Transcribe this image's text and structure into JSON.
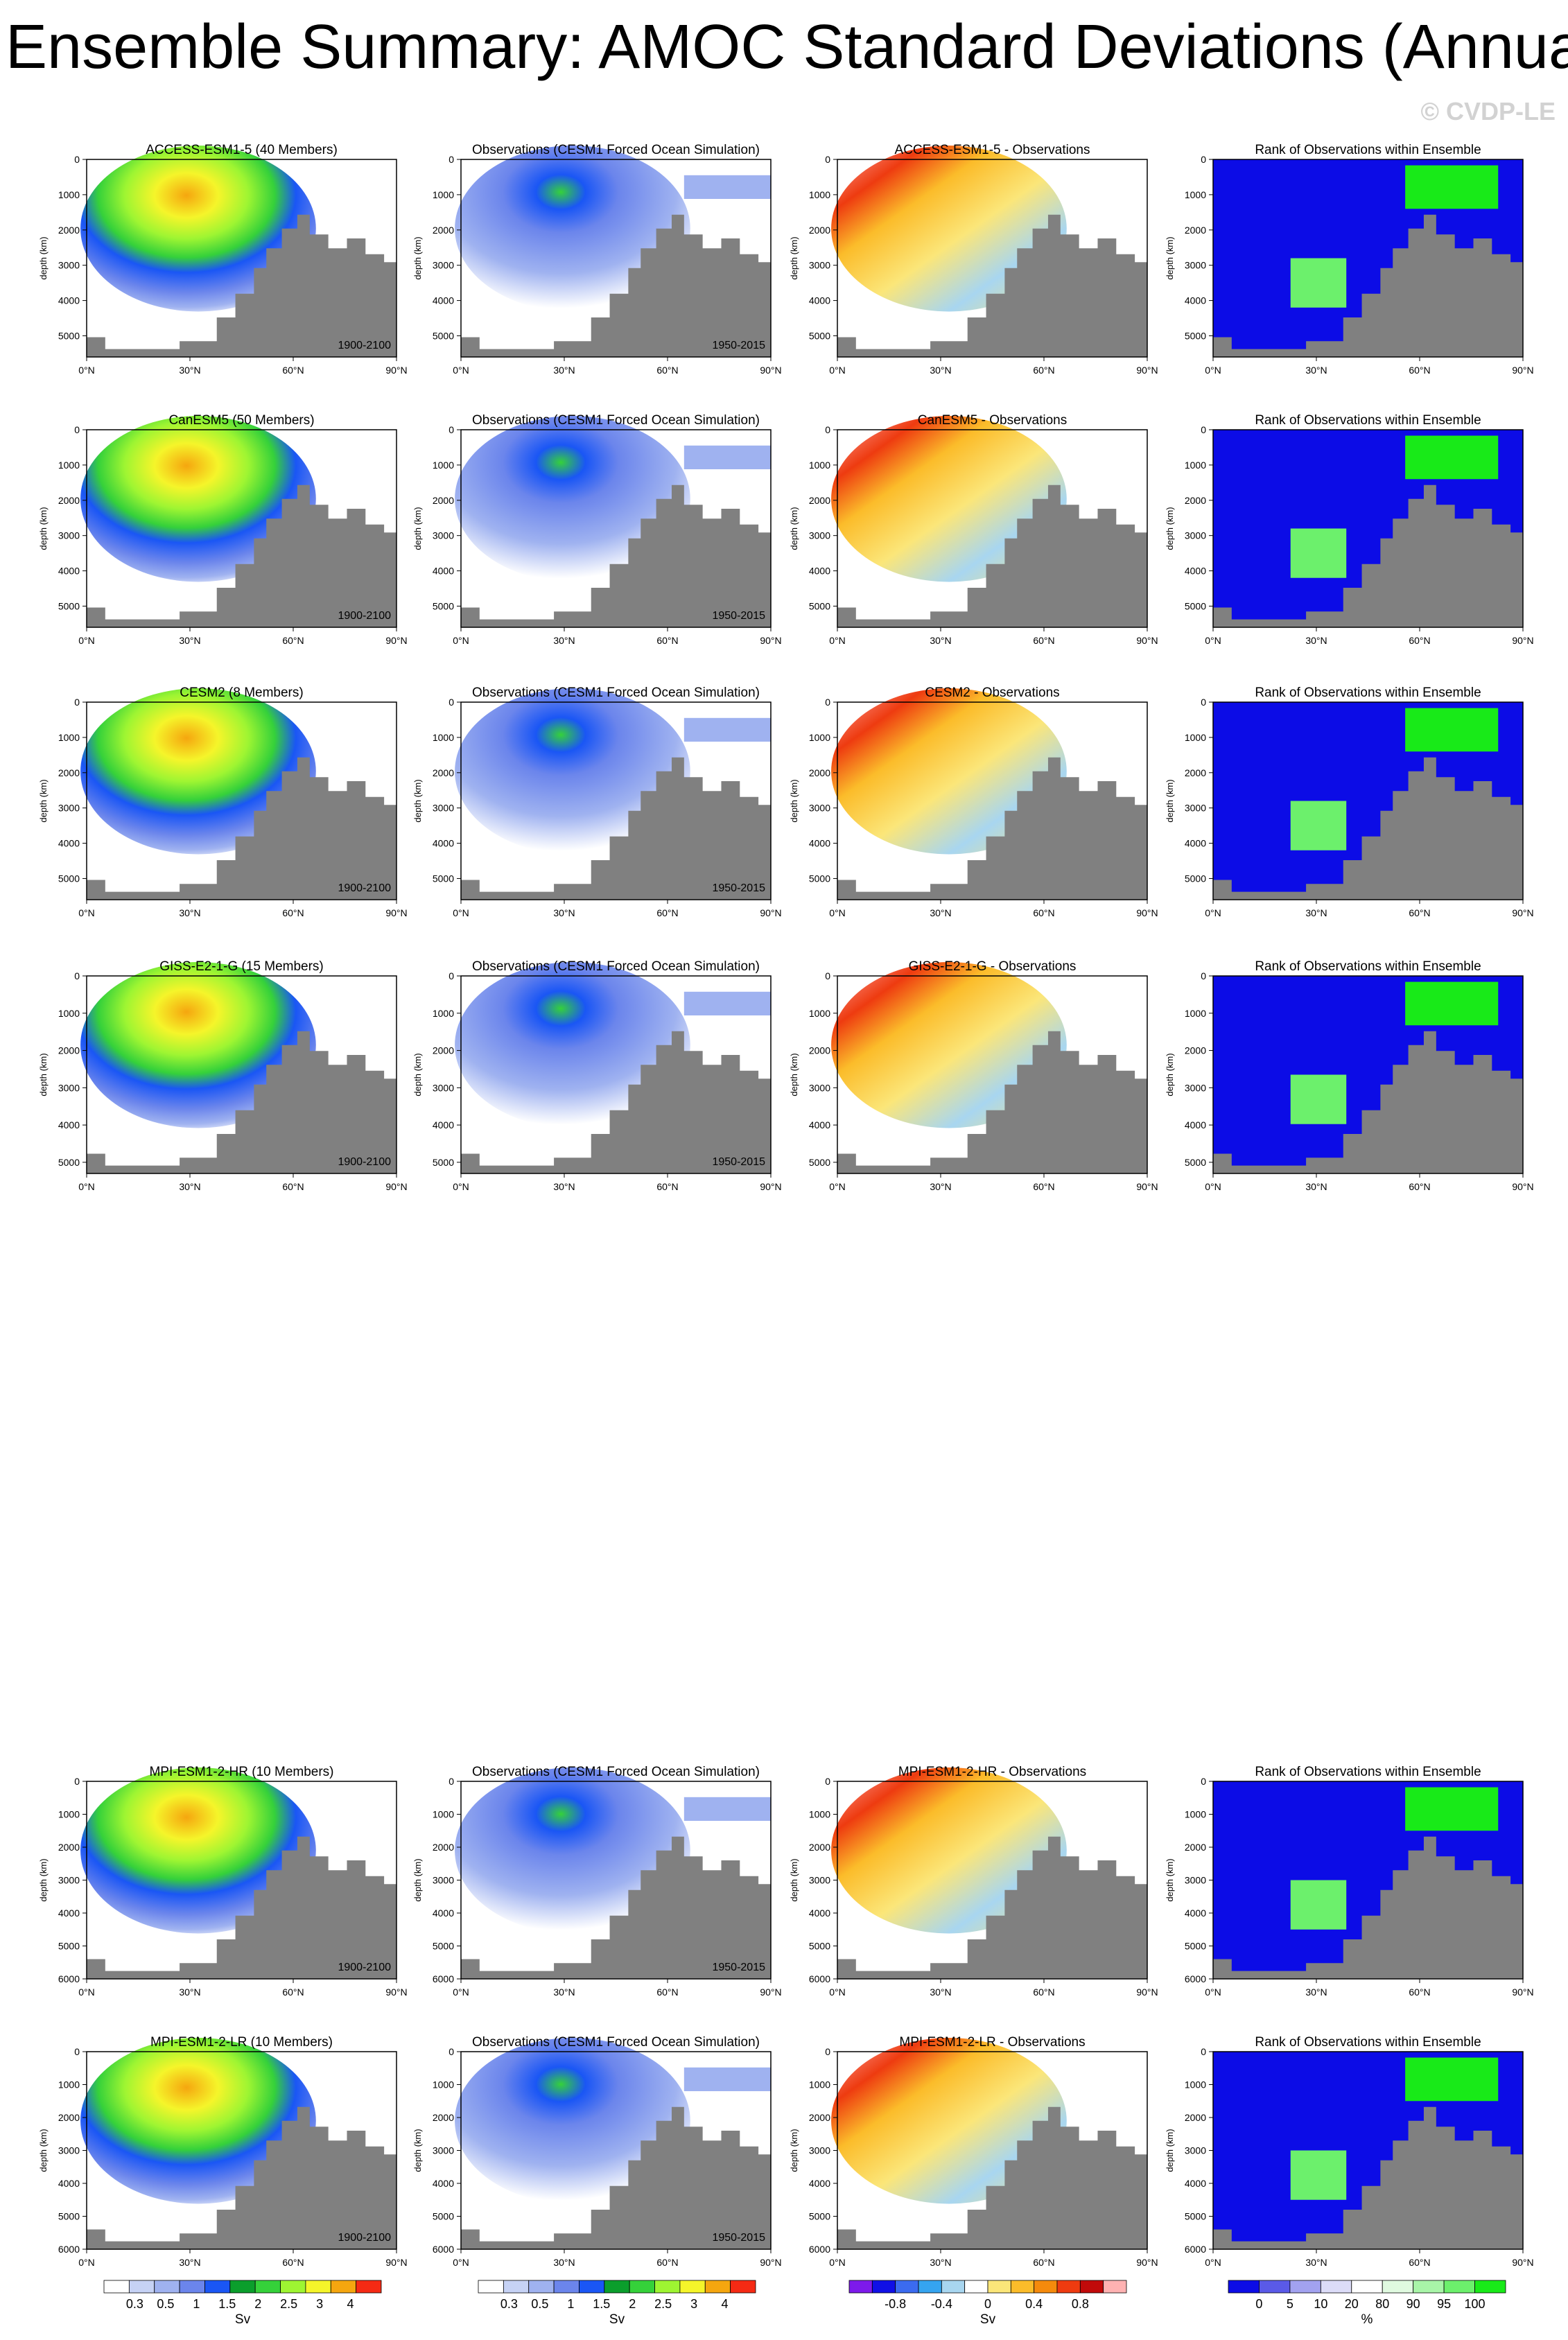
{
  "page": {
    "title": "Ensemble Summary: AMOC Standard Deviations (Annual)",
    "copyright": "© CVDP-LE"
  },
  "colors": {
    "land": "#808080",
    "sd_scale": [
      "#ffffff",
      "#c6d2f5",
      "#9fb2f0",
      "#6b85ec",
      "#1a56f5",
      "#0b9e2c",
      "#35d13a",
      "#9ef532",
      "#f5f52a",
      "#f5a60f",
      "#f52a14"
    ],
    "diff_scale": [
      "#7d1aeb",
      "#1010e6",
      "#3b6bf0",
      "#35a4f0",
      "#a8d6f0",
      "#ffffff",
      "#fbe679",
      "#fbbc2a",
      "#f58a0c",
      "#ee3b10",
      "#c10a0a",
      "#ffb2b2"
    ],
    "rank_scale": [
      "#0c0ce6",
      "#5a5ae8",
      "#a2a2f0",
      "#dcdcf8",
      "#ffffff",
      "#e0fae0",
      "#a8f5a8",
      "#6cf06c",
      "#18ea18"
    ]
  },
  "axes": {
    "xticks": [
      "0°N",
      "30°N",
      "60°N",
      "90°N"
    ],
    "ylabel": "depth (km)"
  },
  "chart_data": {
    "type": "heatmap",
    "variable": "AMOC standard deviation",
    "units": "Sv",
    "x_range": [
      0,
      90
    ],
    "rows": [
      {
        "model": "ACCESS-ESM1-5",
        "model_title": "ACCESS-ESM1-5 (40 Members)",
        "obs_title": "Observations (CESM1 Forced Ocean Simulation)",
        "diff_title": "ACCESS-ESM1-5 - Observations",
        "rank_title": "Rank of Observations within Ensemble",
        "model_period": "1900-2100",
        "obs_period": "1950-2015",
        "yticks": [
          "0",
          "1000",
          "2000",
          "3000",
          "4000",
          "5000"
        ],
        "depth_max": 5600
      },
      {
        "model": "CanESM5",
        "model_title": "CanESM5 (50 Members)",
        "obs_title": "Observations (CESM1 Forced Ocean Simulation)",
        "diff_title": "CanESM5 - Observations",
        "rank_title": "Rank of Observations within Ensemble",
        "model_period": "1900-2100",
        "obs_period": "1950-2015",
        "yticks": [
          "0",
          "1000",
          "2000",
          "3000",
          "4000",
          "5000"
        ],
        "depth_max": 5600
      },
      {
        "model": "CESM2",
        "model_title": "CESM2 (8 Members)",
        "obs_title": "Observations (CESM1 Forced Ocean Simulation)",
        "diff_title": "CESM2 - Observations",
        "rank_title": "Rank of Observations within Ensemble",
        "model_period": "1900-2100",
        "obs_period": "1950-2015",
        "yticks": [
          "0",
          "1000",
          "2000",
          "3000",
          "4000",
          "5000"
        ],
        "depth_max": 5600
      },
      {
        "model": "GISS-E2-1-G",
        "model_title": "GISS-E2-1-G (15 Members)",
        "obs_title": "Observations (CESM1 Forced Ocean Simulation)",
        "diff_title": "GISS-E2-1-G - Observations",
        "rank_title": "Rank of Observations within Ensemble",
        "model_period": "1900-2100",
        "obs_period": "1950-2015",
        "yticks": [
          "0",
          "1000",
          "2000",
          "3000",
          "4000",
          "5000"
        ],
        "depth_max": 5300
      },
      {
        "model": "MPI-ESM1-2-HR",
        "model_title": "MPI-ESM1-2-HR (10 Members)",
        "obs_title": "Observations (CESM1 Forced Ocean Simulation)",
        "diff_title": "MPI-ESM1-2-HR - Observations",
        "rank_title": "Rank of Observations within Ensemble",
        "model_period": "1900-2100",
        "obs_period": "1950-2015",
        "yticks": [
          "0",
          "1000",
          "2000",
          "3000",
          "4000",
          "5000",
          "6000"
        ],
        "depth_max": 6000
      },
      {
        "model": "MPI-ESM1-2-LR",
        "model_title": "MPI-ESM1-2-LR (10 Members)",
        "obs_title": "Observations (CESM1 Forced Ocean Simulation)",
        "diff_title": "MPI-ESM1-2-LR - Observations",
        "rank_title": "Rank of Observations within Ensemble",
        "model_period": "1900-2100",
        "obs_period": "1950-2015",
        "yticks": [
          "0",
          "1000",
          "2000",
          "3000",
          "4000",
          "5000",
          "6000"
        ],
        "depth_max": 6000
      }
    ],
    "labelbars": [
      {
        "ticks": [
          "0.3",
          "0.5",
          "1",
          "1.5",
          "2",
          "2.5",
          "3",
          "4"
        ],
        "unit": "Sv",
        "scale": "sd_scale"
      },
      {
        "ticks": [
          "0.3",
          "0.5",
          "1",
          "1.5",
          "2",
          "2.5",
          "3",
          "4"
        ],
        "unit": "Sv",
        "scale": "sd_scale"
      },
      {
        "ticks": [
          "-0.8",
          "-0.4",
          "0",
          "0.4",
          "0.8"
        ],
        "unit": "Sv",
        "scale": "diff_scale"
      },
      {
        "ticks": [
          "0",
          "5",
          "10",
          "20",
          "80",
          "90",
          "95",
          "100"
        ],
        "unit": "%",
        "scale": "rank_scale"
      }
    ]
  }
}
